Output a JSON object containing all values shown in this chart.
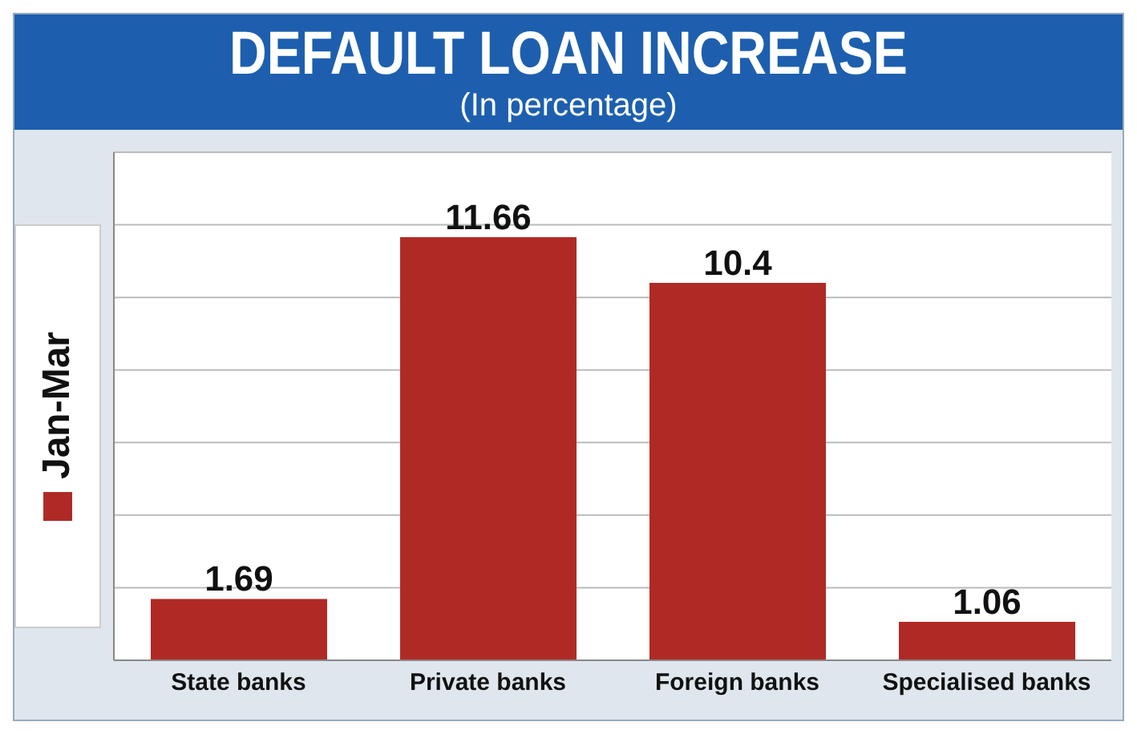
{
  "chart_data": {
    "type": "bar",
    "title": "DEFAULT LOAN INCREASE",
    "subtitle": "(In percentage)",
    "categories": [
      "State banks",
      "Private banks",
      "Foreign banks",
      "Specialised banks"
    ],
    "series": [
      {
        "name": "Jan-Mar",
        "color": "#b02a25",
        "values": [
          1.69,
          11.66,
          10.4,
          1.06
        ]
      }
    ],
    "ylim": [
      0,
      14
    ],
    "yticks": [
      {
        "value": 0,
        "label": null
      },
      {
        "value": 2,
        "label": null
      },
      {
        "value": 4,
        "label": null
      },
      {
        "value": 6,
        "label": null
      },
      {
        "value": 8,
        "label": null
      },
      {
        "value": 10,
        "label": null
      },
      {
        "value": 12,
        "label": null
      },
      {
        "value": 14,
        "label": null
      }
    ],
    "grid": "y",
    "legend": "left",
    "data_labels": true
  }
}
